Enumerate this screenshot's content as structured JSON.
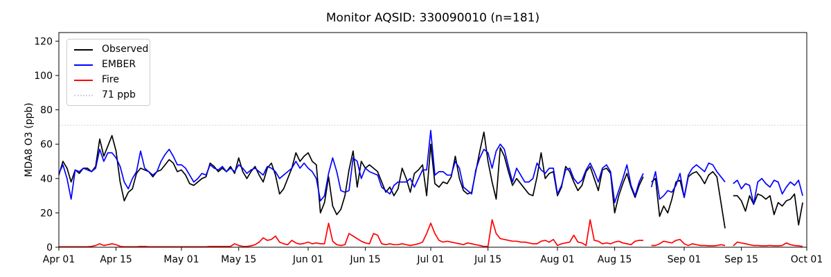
{
  "title": "Monitor AQSID: 330090010 (n=181)",
  "ylabel": "MDA8 O3 (ppb)",
  "legend": {
    "items": [
      {
        "label": "Observed",
        "color": "#000000",
        "style": "solid"
      },
      {
        "label": "EMBER",
        "color": "#0000ff",
        "style": "solid"
      },
      {
        "label": "Fire",
        "color": "#ff0000",
        "style": "solid"
      },
      {
        "label": "71 ppb",
        "color": "#d3d3d3",
        "style": "dotted"
      }
    ]
  },
  "chart_data": {
    "type": "line",
    "title": "Monitor AQSID: 330090010 (n=181)",
    "xlabel": "",
    "ylabel": "MDA8 O3 (ppb)",
    "ylim": [
      0,
      125
    ],
    "y_ticks": [
      0,
      20,
      40,
      60,
      80,
      100,
      120
    ],
    "x_range": {
      "start": "Apr 01",
      "end": "Oct 01",
      "total_days": 183,
      "resolution": "daily"
    },
    "x_ticks": [
      {
        "label": "Apr 01",
        "day": 0
      },
      {
        "label": "Apr 15",
        "day": 14
      },
      {
        "label": "May 01",
        "day": 30
      },
      {
        "label": "May 15",
        "day": 44
      },
      {
        "label": "Jun 01",
        "day": 61
      },
      {
        "label": "Jun 15",
        "day": 75
      },
      {
        "label": "Jul 01",
        "day": 91
      },
      {
        "label": "Jul 15",
        "day": 105
      },
      {
        "label": "Aug 01",
        "day": 122
      },
      {
        "label": "Aug 15",
        "day": 136
      },
      {
        "label": "Sep 01",
        "day": 153
      },
      {
        "label": "Sep 15",
        "day": 167
      },
      {
        "label": "Oct 01",
        "day": 183
      }
    ],
    "threshold": {
      "value": 71,
      "label": "71 ppb",
      "color": "#d3d3d3",
      "style": "dotted"
    },
    "grid": false,
    "legend_position": "upper left",
    "missing_data_dates": [
      "Aug 23",
      "Sep 12"
    ],
    "series": [
      {
        "name": "Observed",
        "color": "#000000",
        "values": [
          42,
          50,
          46,
          38,
          45,
          43,
          46,
          46,
          44,
          47,
          63,
          53,
          59,
          65,
          56,
          38,
          27,
          32,
          34,
          43,
          46,
          45,
          44,
          41,
          44,
          45,
          48,
          51,
          49,
          44,
          45,
          42,
          37,
          36,
          38,
          40,
          41,
          49,
          47,
          44,
          46,
          44,
          47,
          43,
          52,
          44,
          40,
          44,
          47,
          42,
          38,
          46,
          49,
          42,
          31,
          34,
          40,
          46,
          55,
          50,
          53,
          55,
          50,
          48,
          20,
          26,
          41,
          24,
          19,
          22,
          30,
          45,
          56,
          35,
          50,
          46,
          48,
          46,
          44,
          38,
          32,
          35,
          30,
          34,
          46,
          40,
          32,
          43,
          45,
          48,
          30,
          60,
          37,
          35,
          38,
          37,
          41,
          53,
          40,
          33,
          31,
          32,
          44,
          56,
          67,
          50,
          38,
          28,
          58,
          53,
          44,
          36,
          40,
          37,
          34,
          31,
          30,
          41,
          55,
          40,
          43,
          44,
          30,
          35,
          47,
          44,
          38,
          33,
          36,
          44,
          47,
          40,
          33,
          45,
          46,
          43,
          20,
          30,
          37,
          43,
          35,
          29,
          36,
          41,
          null,
          38,
          40,
          18,
          24,
          20,
          28,
          38,
          39,
          29,
          41,
          43,
          44,
          41,
          37,
          42,
          44,
          41,
          26,
          11,
          null,
          30,
          30,
          27,
          21,
          30,
          25,
          31,
          30,
          28,
          30,
          19,
          26,
          24,
          27,
          28,
          31,
          13,
          26
        ]
      },
      {
        "name": "EMBER",
        "color": "#0000ff",
        "values": [
          43,
          48,
          40,
          28,
          45,
          44,
          46,
          45,
          44,
          46,
          57,
          50,
          55,
          55,
          52,
          47,
          38,
          34,
          40,
          44,
          56,
          46,
          44,
          42,
          44,
          50,
          54,
          57,
          53,
          48,
          48,
          46,
          42,
          38,
          40,
          43,
          42,
          48,
          46,
          45,
          47,
          44,
          46,
          44,
          48,
          46,
          43,
          45,
          46,
          44,
          42,
          47,
          46,
          44,
          40,
          42,
          44,
          46,
          50,
          46,
          49,
          46,
          44,
          40,
          27,
          30,
          43,
          52,
          44,
          33,
          32,
          33,
          52,
          50,
          40,
          46,
          44,
          43,
          42,
          35,
          33,
          31,
          36,
          38,
          38,
          38,
          40,
          35,
          40,
          45,
          45,
          68,
          42,
          44,
          44,
          42,
          42,
          50,
          46,
          35,
          33,
          31,
          45,
          52,
          57,
          55,
          46,
          56,
          60,
          57,
          47,
          38,
          46,
          42,
          38,
          38,
          40,
          49,
          45,
          43,
          46,
          46,
          31,
          36,
          45,
          46,
          40,
          37,
          39,
          45,
          49,
          44,
          38,
          46,
          48,
          44,
          26,
          33,
          40,
          48,
          36,
          30,
          38,
          43,
          null,
          35,
          44,
          28,
          30,
          33,
          32,
          36,
          43,
          29,
          42,
          46,
          48,
          46,
          44,
          49,
          48,
          44,
          41,
          38,
          null,
          37,
          39,
          34,
          37,
          36,
          25,
          38,
          40,
          37,
          35,
          39,
          38,
          31,
          35,
          38,
          36,
          39,
          30
        ]
      },
      {
        "name": "Fire",
        "color": "#ff0000",
        "values": [
          0.3,
          0.3,
          0.3,
          0.3,
          0.3,
          0.3,
          0.3,
          0.3,
          0.5,
          1,
          2,
          1,
          1.5,
          2,
          1.5,
          0.5,
          0.3,
          0.3,
          0.3,
          0.3,
          0.5,
          0.5,
          0.3,
          0.3,
          0.3,
          0.3,
          0.3,
          0.3,
          0.3,
          0.3,
          0.3,
          0.3,
          0.3,
          0.3,
          0.3,
          0.3,
          0.3,
          0.5,
          0.5,
          0.5,
          0.5,
          0.5,
          0.5,
          2,
          1,
          0.5,
          0.5,
          0.8,
          1.5,
          3,
          5.5,
          4,
          4.5,
          6.5,
          3,
          2,
          1.5,
          4,
          2.5,
          1.8,
          2.2,
          3,
          2,
          2.5,
          2,
          2,
          14,
          3.5,
          1.5,
          1,
          1.5,
          8,
          6.5,
          5,
          3.5,
          2.5,
          2,
          8,
          7,
          2,
          1.5,
          2,
          1.5,
          1.5,
          2,
          1.5,
          1,
          1.5,
          2,
          3,
          8,
          14,
          8,
          4,
          3,
          3.5,
          3,
          2.5,
          2,
          1.5,
          2.5,
          2,
          1.5,
          1,
          0.5,
          0.5,
          16,
          8,
          5,
          4.5,
          4,
          3.5,
          3.5,
          3,
          3,
          2.5,
          2,
          2,
          3.5,
          4,
          3,
          4.5,
          1,
          2,
          2.5,
          3,
          7,
          3,
          2.5,
          1,
          16,
          4,
          3.5,
          2,
          2.5,
          2,
          3,
          3.5,
          2.5,
          2,
          1.5,
          3.5,
          4,
          4,
          null,
          1,
          1,
          2,
          3.5,
          3,
          2.5,
          4,
          4.5,
          2,
          1,
          2,
          1.5,
          1,
          1,
          0.8,
          0.8,
          1,
          1.5,
          1,
          null,
          0.8,
          3,
          2.5,
          2,
          1.5,
          1,
          1,
          0.8,
          0.8,
          1,
          0.8,
          0.8,
          1,
          2.5,
          1.5,
          1,
          0.8,
          0.5
        ]
      }
    ]
  }
}
